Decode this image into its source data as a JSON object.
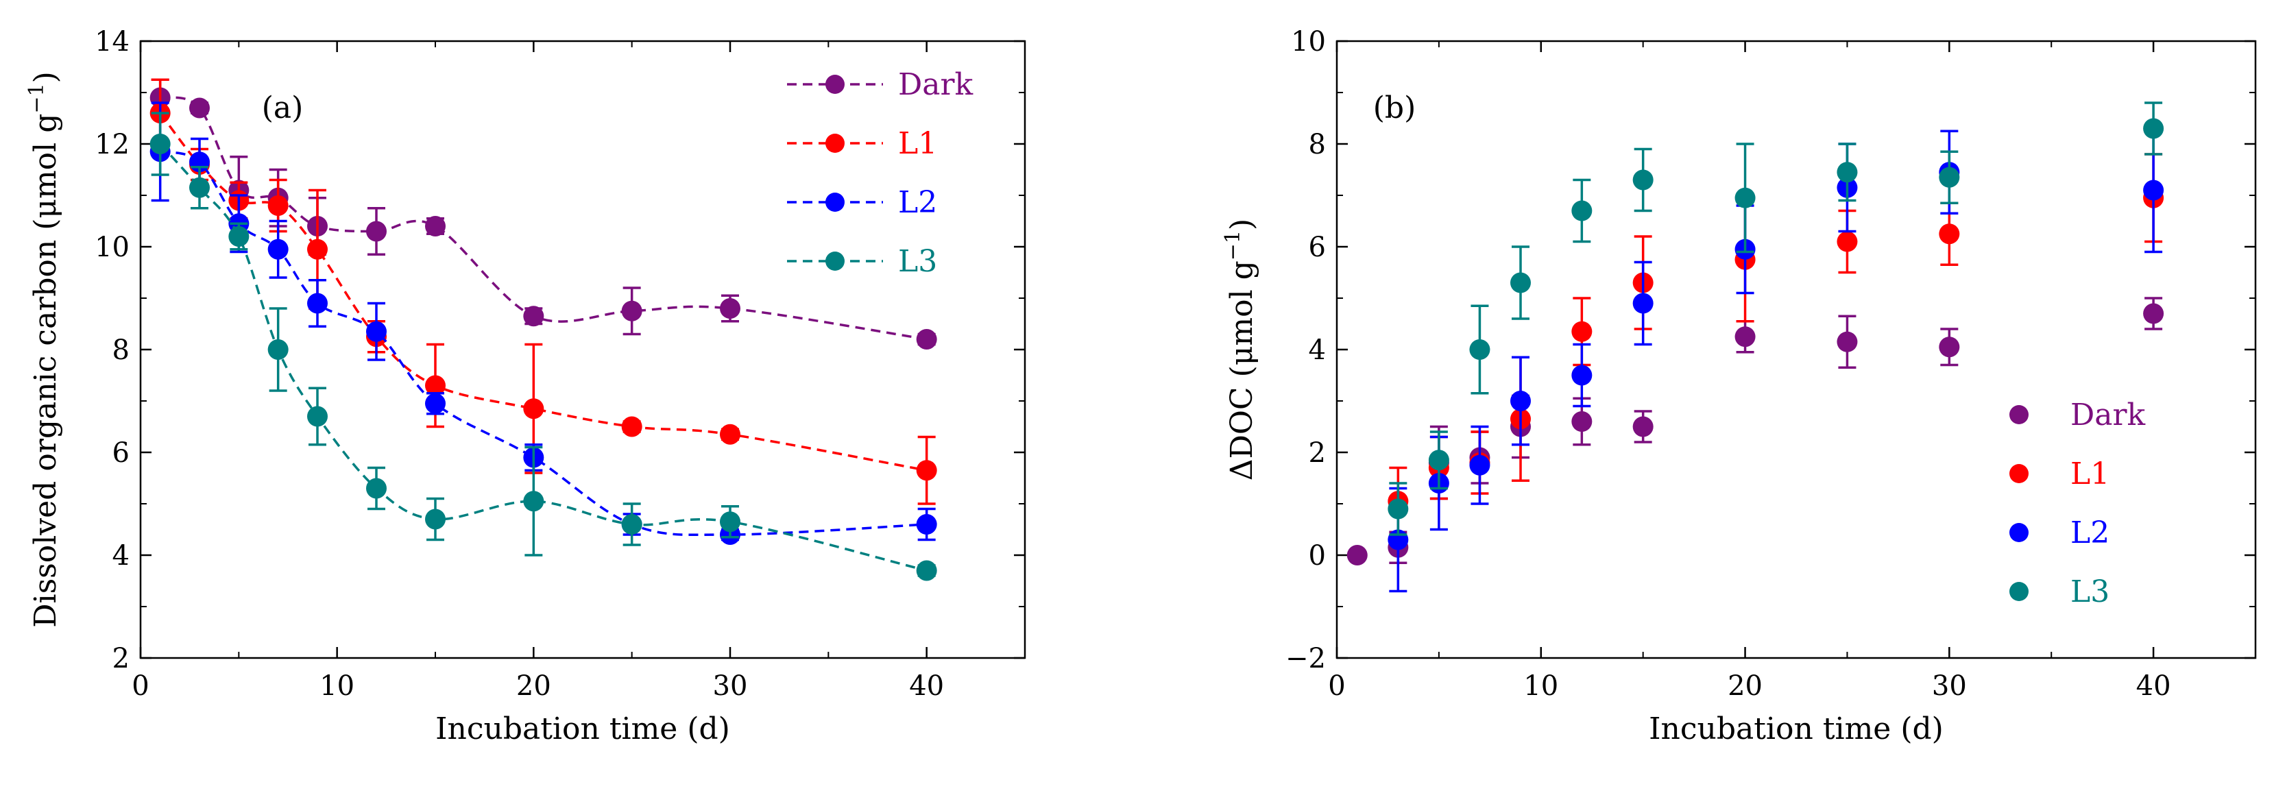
{
  "chart_data": [
    {
      "type": "line",
      "panel_label": "(a)",
      "xlabel": "Incubation time (d)",
      "ylabel_main": "Dissolved organic carbon (μmol g",
      "ylabel_sup": "−1",
      "ylabel_close": ")",
      "xlim": [
        0,
        45
      ],
      "ylim": [
        2,
        14
      ],
      "xticks": [
        0,
        10,
        20,
        30,
        40
      ],
      "yticks": [
        2,
        4,
        6,
        8,
        10,
        12,
        14
      ],
      "legend_position": "top-right",
      "series": [
        {
          "name": "Dark",
          "color": "#7b0f7e",
          "x": [
            1,
            3,
            5,
            7,
            9,
            12,
            15,
            20,
            25,
            30,
            40
          ],
          "y": [
            12.9,
            12.7,
            11.1,
            10.95,
            10.4,
            10.3,
            10.4,
            8.65,
            8.75,
            8.8,
            8.2
          ],
          "err": [
            0.35,
            0.1,
            0.65,
            0.55,
            0.55,
            0.45,
            0.15,
            0.15,
            0.45,
            0.25,
            0.1
          ]
        },
        {
          "name": "L1",
          "color": "#ff0000",
          "x": [
            1,
            3,
            5,
            7,
            9,
            12,
            15,
            20,
            25,
            30,
            40
          ],
          "y": [
            12.6,
            11.6,
            10.9,
            10.8,
            9.95,
            8.25,
            7.3,
            6.85,
            6.5,
            6.35,
            5.65
          ],
          "err": [
            0.65,
            0.3,
            0.35,
            0.5,
            1.15,
            0.3,
            0.8,
            1.25,
            0.1,
            0.1,
            0.65
          ]
        },
        {
          "name": "L2",
          "color": "#0000ff",
          "x": [
            1,
            3,
            5,
            7,
            9,
            12,
            15,
            20,
            25,
            30,
            40
          ],
          "y": [
            11.85,
            11.65,
            10.45,
            9.95,
            8.9,
            8.35,
            6.95,
            5.9,
            4.6,
            4.4,
            4.6
          ],
          "err": [
            0.95,
            0.45,
            0.55,
            0.55,
            0.45,
            0.55,
            0.2,
            0.25,
            0.2,
            0.1,
            0.3
          ]
        },
        {
          "name": "L3",
          "color": "#008080",
          "x": [
            1,
            3,
            5,
            7,
            9,
            12,
            15,
            20,
            25,
            30,
            40
          ],
          "y": [
            12.0,
            11.15,
            10.2,
            8.0,
            6.7,
            5.3,
            4.7,
            5.05,
            4.6,
            4.65,
            3.7
          ],
          "err": [
            0.6,
            0.4,
            0.25,
            0.8,
            0.55,
            0.4,
            0.4,
            1.05,
            0.4,
            0.3,
            0.1
          ]
        }
      ]
    },
    {
      "type": "scatter",
      "panel_label": "(b)",
      "xlabel": "Incubation time (d)",
      "ylabel_main": "ΔDOC (μmol g",
      "ylabel_sup": "−1",
      "ylabel_close": ")",
      "xlim": [
        0,
        45
      ],
      "ylim": [
        -2,
        10
      ],
      "xticks": [
        0,
        10,
        20,
        30,
        40
      ],
      "yticks": [
        -2,
        0,
        2,
        4,
        6,
        8,
        10
      ],
      "ytick_labels": [
        "−2",
        "0",
        "2",
        "4",
        "6",
        "8",
        "10"
      ],
      "legend_position": "bottom-right",
      "series": [
        {
          "name": "Dark",
          "color": "#7b0f7e",
          "x": [
            1,
            3,
            5,
            7,
            9,
            12,
            15,
            20,
            25,
            30,
            40
          ],
          "y": [
            0,
            0.15,
            1.8,
            1.9,
            2.5,
            2.6,
            2.5,
            4.25,
            4.15,
            4.05,
            4.7
          ],
          "err": [
            0,
            0.3,
            0.7,
            0.5,
            0.6,
            0.45,
            0.3,
            0.3,
            0.5,
            0.35,
            0.3
          ]
        },
        {
          "name": "L1",
          "color": "#ff0000",
          "x": [
            3,
            5,
            7,
            9,
            12,
            15,
            20,
            25,
            30,
            40
          ],
          "y": [
            1.05,
            1.7,
            1.8,
            2.65,
            4.35,
            5.3,
            5.75,
            6.1,
            6.25,
            6.95
          ],
          "err": [
            0.65,
            0.6,
            0.6,
            1.2,
            0.65,
            0.9,
            1.2,
            0.6,
            0.6,
            0.85
          ]
        },
        {
          "name": "L2",
          "color": "#0000ff",
          "x": [
            3,
            5,
            7,
            9,
            12,
            15,
            20,
            25,
            30,
            40
          ],
          "y": [
            0.3,
            1.4,
            1.75,
            3.0,
            3.5,
            4.9,
            5.95,
            7.15,
            7.45,
            7.1
          ],
          "err": [
            1.0,
            0.9,
            0.75,
            0.85,
            0.6,
            0.8,
            0.85,
            0.85,
            0.8,
            1.2
          ]
        },
        {
          "name": "L3",
          "color": "#008080",
          "x": [
            3,
            5,
            7,
            9,
            12,
            15,
            20,
            25,
            30,
            40
          ],
          "y": [
            0.9,
            1.85,
            4.0,
            5.3,
            6.7,
            7.3,
            6.95,
            7.45,
            7.35,
            8.3
          ],
          "err": [
            0.5,
            0.55,
            0.85,
            0.7,
            0.6,
            0.6,
            1.05,
            0.55,
            0.5,
            0.5
          ]
        }
      ]
    }
  ]
}
